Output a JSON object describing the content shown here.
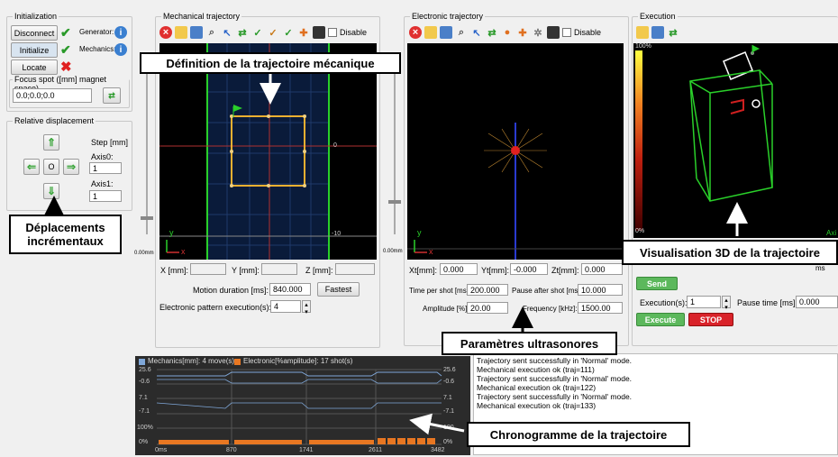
{
  "initialization": {
    "title": "Initialization",
    "disconnect": "Disconnect",
    "initialize": "Initialize",
    "locate": "Locate",
    "generator_label": "Generator:",
    "mechanics_label": "Mechanics:",
    "focus_label": "Focus spot ([mm] magnet space)",
    "focus_value": "0.0;0.0;0.0"
  },
  "relative": {
    "title": "Relative displacement",
    "step_label": "Step [mm]",
    "axis0_label": "Axis0:",
    "axis0_value": "1",
    "axis1_label": "Axis1:",
    "axis1_value": "1",
    "center": "O"
  },
  "mechanical": {
    "title": "Mechanical trajectory",
    "disable": "Disable",
    "scale_label": "0.00mm",
    "axis_0": "0",
    "axis_m10": "-10",
    "x_label": "X [mm]:",
    "y_label": "Y [mm]:",
    "z_label": "Z [mm]:",
    "motion_label": "Motion duration [ms]:",
    "motion_value": "840.000",
    "fastest": "Fastest",
    "pattern_label": "Electronic pattern execution(s):",
    "pattern_value": "4",
    "y_axis": "y",
    "x_axis": "x"
  },
  "electronic": {
    "title": "Electronic trajectory",
    "disable": "Disable",
    "scale_label": "0.00mm",
    "xt_label": "Xt[mm]:",
    "xt_value": "0.000",
    "yt_label": "Yt[mm]:",
    "yt_value": "-0.000",
    "zt_label": "Zt[mm]:",
    "zt_value": "0.000",
    "time_label": "Time per shot [ms]:",
    "time_value": "200.000",
    "pause_label": "Pause after shot [ms]:",
    "pause_value": "10.000",
    "amp_label": "Amplitude [%]:",
    "amp_value": "20.00",
    "freq_label": "Frequency [kHz]:",
    "freq_value": "1500.00",
    "y_axis": "y",
    "x_axis": "x"
  },
  "execution": {
    "title": "Execution",
    "scale_top": "100%",
    "scale_bottom": "0%",
    "axis_cut": "Axi",
    "send": "Send",
    "executions_label": "Execution(s):",
    "executions_value": "1",
    "pause_label": "Pause time [ms]:",
    "pause_value": "0.000",
    "execute": "Execute",
    "stop": "STOP",
    "cut_right": "ms"
  },
  "chronogram": {
    "legend_mech": "Mechanics[mm]: 4 move(s)",
    "legend_elec": "Electronic[%amplitude]: 17 shot(s)",
    "t_ticks": [
      "0ms",
      "870",
      "1741",
      "2611",
      "3482"
    ],
    "row1": {
      "top": "25.6",
      "bottom": "-0.6",
      "top_r": "25.6",
      "bottom_r": "-0.6"
    },
    "row2": {
      "top": "7.1",
      "bottom": "-7.1",
      "top_r": "7.1",
      "bottom_r": "-7.1"
    },
    "row3": {
      "top": "100%",
      "bottom": "0%",
      "top_r": "100",
      "bottom_r": "0%"
    },
    "colors": {
      "mech": "#7fa7d8",
      "elec": "#e87722"
    }
  },
  "log": {
    "lines": [
      "Trajectory sent successfully in 'Normal' mode.",
      "Mechanical execution ok (traj=111)",
      "Trajectory sent successfully in 'Normal' mode.",
      "Mechanical execution ok (traj=122)",
      "Trajectory sent successfully in 'Normal' mode.",
      "Mechanical execution ok (traj=133)"
    ]
  },
  "callouts": {
    "mech": "Définition de la trajectoire mécanique",
    "displacement": "Déplacements incrémentaux",
    "vis3d": "Visualisation  3D de la trajectoire",
    "ultra": "Paramètres ultrasonores",
    "chrono": "Chronogramme de la trajectoire"
  }
}
